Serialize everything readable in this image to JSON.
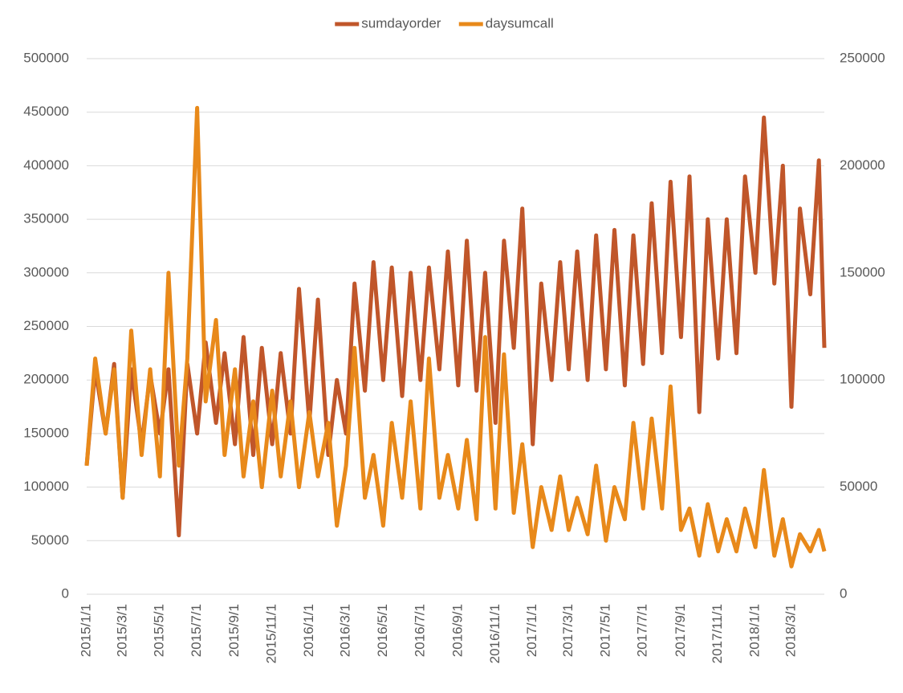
{
  "chart_data": {
    "type": "line",
    "x": [
      "2015/1/1",
      "2015/1/15",
      "2015/2/1",
      "2015/2/15",
      "2015/3/1",
      "2015/3/15",
      "2015/4/1",
      "2015/4/15",
      "2015/5/1",
      "2015/5/15",
      "2015/6/1",
      "2015/6/15",
      "2015/7/1",
      "2015/7/15",
      "2015/8/1",
      "2015/8/15",
      "2015/9/1",
      "2015/9/15",
      "2015/10/1",
      "2015/10/15",
      "2015/11/1",
      "2015/11/15",
      "2015/12/1",
      "2015/12/15",
      "2016/1/1",
      "2016/1/15",
      "2016/2/1",
      "2016/2/15",
      "2016/3/1",
      "2016/3/15",
      "2016/4/1",
      "2016/4/15",
      "2016/5/1",
      "2016/5/15",
      "2016/6/1",
      "2016/6/15",
      "2016/7/1",
      "2016/7/15",
      "2016/8/1",
      "2016/8/15",
      "2016/9/1",
      "2016/9/15",
      "2016/10/1",
      "2016/10/15",
      "2016/11/1",
      "2016/11/15",
      "2016/12/1",
      "2016/12/15",
      "2017/1/1",
      "2017/1/15",
      "2017/2/1",
      "2017/2/15",
      "2017/3/1",
      "2017/3/15",
      "2017/4/1",
      "2017/4/15",
      "2017/5/1",
      "2017/5/15",
      "2017/6/1",
      "2017/6/15",
      "2017/7/1",
      "2017/7/15",
      "2017/8/1",
      "2017/8/15",
      "2017/9/1",
      "2017/9/15",
      "2017/10/1",
      "2017/10/15",
      "2017/11/1",
      "2017/11/15",
      "2017/12/1",
      "2017/12/15",
      "2018/1/1",
      "2018/1/15",
      "2018/2/1",
      "2018/2/15",
      "2018/3/1",
      "2018/3/15",
      "2018/4/1",
      "2018/4/15",
      "2018/4/24"
    ],
    "series": [
      {
        "name": "sumdayorder",
        "color": "#c0562a",
        "values": [
          120000,
          210000,
          150000,
          215000,
          90000,
          210000,
          140000,
          205000,
          150000,
          210000,
          55000,
          215000,
          150000,
          235000,
          160000,
          225000,
          140000,
          240000,
          130000,
          230000,
          140000,
          225000,
          150000,
          285000,
          160000,
          275000,
          130000,
          200000,
          150000,
          290000,
          190000,
          310000,
          200000,
          305000,
          185000,
          300000,
          200000,
          305000,
          210000,
          320000,
          195000,
          330000,
          190000,
          300000,
          160000,
          330000,
          230000,
          360000,
          140000,
          290000,
          200000,
          310000,
          210000,
          320000,
          200000,
          335000,
          210000,
          340000,
          195000,
          335000,
          215000,
          365000,
          225000,
          385000,
          240000,
          390000,
          170000,
          350000,
          220000,
          350000,
          225000,
          390000,
          300000,
          445000,
          290000,
          400000,
          175000,
          360000,
          280000,
          405000,
          230000
        ]
      },
      {
        "name": "daysumcall",
        "color": "#e8891a",
        "axis": "y2",
        "values": [
          60000,
          110000,
          75000,
          105000,
          45000,
          123000,
          65000,
          105000,
          55000,
          150000,
          60000,
          110000,
          227000,
          90000,
          128000,
          65000,
          105000,
          55000,
          90000,
          50000,
          95000,
          55000,
          90000,
          50000,
          85000,
          55000,
          80000,
          32000,
          60000,
          115000,
          45000,
          65000,
          32000,
          80000,
          45000,
          90000,
          40000,
          110000,
          45000,
          65000,
          40000,
          72000,
          35000,
          120000,
          40000,
          112000,
          38000,
          70000,
          22000,
          50000,
          30000,
          55000,
          30000,
          45000,
          28000,
          60000,
          25000,
          50000,
          35000,
          80000,
          40000,
          82000,
          40000,
          97000,
          30000,
          40000,
          18000,
          42000,
          20000,
          35000,
          20000,
          40000,
          22000,
          58000,
          18000,
          35000,
          13000,
          28000,
          20000,
          30000,
          20000
        ]
      }
    ],
    "xlim": [
      "2015/1/1",
      "2018/4/24"
    ],
    "xticks": [
      "2015/1/1",
      "2015/3/1",
      "2015/5/1",
      "2015/7/1",
      "2015/9/1",
      "2015/11/1",
      "2016/1/1",
      "2016/3/1",
      "2016/5/1",
      "2016/7/1",
      "2016/9/1",
      "2016/11/1",
      "2017/1/1",
      "2017/3/1",
      "2017/5/1",
      "2017/7/1",
      "2017/9/1",
      "2017/11/1",
      "2018/1/1",
      "2018/3/1"
    ],
    "ylim": [
      0,
      500000
    ],
    "yticks": [
      0,
      50000,
      100000,
      150000,
      200000,
      250000,
      300000,
      350000,
      400000,
      450000,
      500000
    ],
    "y2lim": [
      0,
      250000
    ],
    "y2ticks": [
      0,
      50000,
      100000,
      150000,
      200000,
      250000
    ],
    "grid": true,
    "legend": "top"
  }
}
